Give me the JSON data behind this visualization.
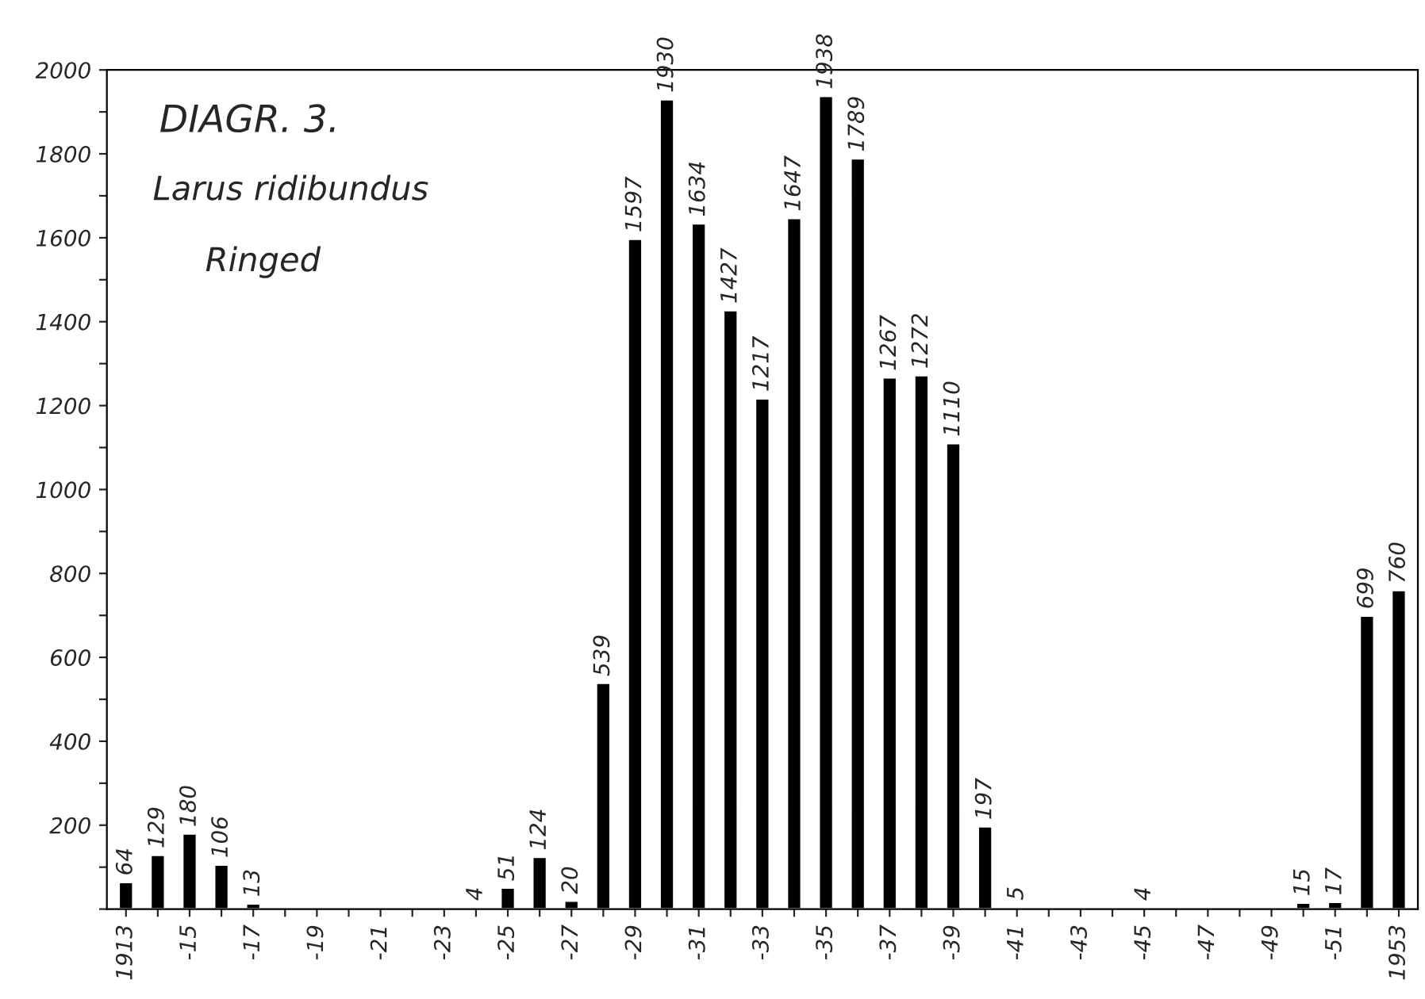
{
  "chart_data": {
    "type": "bar",
    "title": "DIAGR. 3.",
    "subtitle": "Larus ridibundus",
    "annotations": [
      "Ringed"
    ],
    "categories": [
      "1913",
      null,
      "-15",
      null,
      "-17",
      null,
      "-19",
      null,
      "-21",
      null,
      "-23",
      null,
      "-25",
      null,
      "-27",
      null,
      "-29",
      null,
      "-31",
      null,
      "-33",
      null,
      "-35",
      null,
      "-37",
      null,
      "-39",
      null,
      "-41",
      null,
      "-43",
      null,
      "-45",
      null,
      "-47",
      null,
      "-49",
      null,
      "-51",
      null,
      "1953"
    ],
    "values": [
      64,
      129,
      180,
      106,
      13,
      null,
      null,
      null,
      null,
      null,
      null,
      4,
      51,
      124,
      20,
      539,
      1597,
      1930,
      1634,
      1427,
      1217,
      1647,
      1938,
      1789,
      1267,
      1272,
      1110,
      197,
      5,
      null,
      null,
      null,
      4,
      null,
      null,
      null,
      null,
      15,
      17,
      699,
      760
    ],
    "color": "#000000",
    "data_labels": true,
    "ylim": [
      0,
      2000
    ],
    "yticks": [
      {
        "value": 0,
        "label": null
      },
      {
        "value": 100,
        "label": null
      },
      200,
      {
        "value": 300,
        "label": null
      },
      400,
      {
        "value": 500,
        "label": null
      },
      600,
      {
        "value": 700,
        "label": null
      },
      800,
      {
        "value": 900,
        "label": null
      },
      1000,
      {
        "value": 1100,
        "label": null
      },
      1200,
      {
        "value": 1300,
        "label": null
      },
      1400,
      {
        "value": 1500,
        "label": null
      },
      1600,
      {
        "value": 1700,
        "label": null
      },
      1800,
      {
        "value": 1900,
        "label": null
      },
      2000
    ],
    "grid": false,
    "legend": false
  }
}
